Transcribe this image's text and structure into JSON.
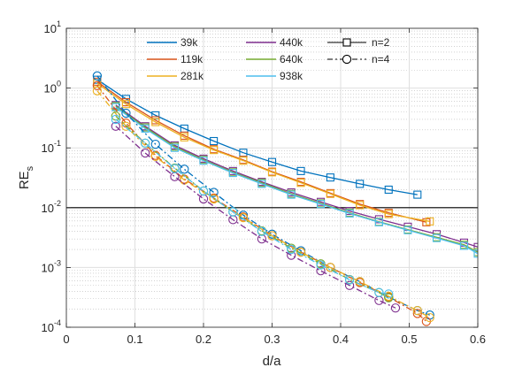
{
  "chart_data": {
    "type": "line",
    "xlabel": "d/a",
    "ylabel": "RE",
    "ylabel_sub": "s",
    "xlim": [
      0,
      0.6
    ],
    "ylim": [
      0.0001,
      10
    ],
    "yscale": "log",
    "grid": true,
    "minor_grid": true,
    "legend_placement": "top",
    "reference_line": {
      "y": 0.01,
      "color": "#000000"
    },
    "x_ticks": [
      "0",
      "0.1",
      "0.2",
      "0.3",
      "0.4",
      "0.5",
      "0.6"
    ],
    "y_ticks": [
      {
        "base": "10",
        "exp": "-4"
      },
      {
        "base": "10",
        "exp": "-3"
      },
      {
        "base": "10",
        "exp": "-2"
      },
      {
        "base": "10",
        "exp": "-1"
      },
      {
        "base": "10",
        "exp": "0"
      },
      {
        "base": "10",
        "exp": "1"
      }
    ],
    "series": [
      {
        "name": "39k",
        "color": "#0072BD",
        "marker": "square",
        "linestyle": "solid",
        "x": [
          0.045,
          0.087,
          0.13,
          0.172,
          0.215,
          0.258,
          0.3,
          0.342,
          0.385,
          0.428,
          0.47,
          0.512
        ],
        "y": [
          1.38,
          0.66,
          0.35,
          0.21,
          0.13,
          0.083,
          0.058,
          0.041,
          0.032,
          0.025,
          0.02,
          0.0165
        ]
      },
      {
        "name": "119k",
        "color": "#D95319",
        "marker": "square",
        "linestyle": "solid",
        "x": [
          0.045,
          0.087,
          0.13,
          0.172,
          0.215,
          0.258,
          0.3,
          0.342,
          0.385,
          0.428,
          0.47,
          0.525
        ],
        "y": [
          1.28,
          0.58,
          0.29,
          0.16,
          0.095,
          0.063,
          0.04,
          0.027,
          0.0175,
          0.0115,
          0.0082,
          0.0057
        ]
      },
      {
        "name": "281k",
        "color": "#EDB120",
        "marker": "square",
        "linestyle": "solid",
        "x": [
          0.045,
          0.087,
          0.13,
          0.172,
          0.215,
          0.258,
          0.3,
          0.342,
          0.385,
          0.428,
          0.47,
          0.53
        ],
        "y": [
          1.2,
          0.54,
          0.27,
          0.15,
          0.092,
          0.061,
          0.039,
          0.026,
          0.017,
          0.011,
          0.0078,
          0.0059
        ]
      },
      {
        "name": "440k",
        "color": "#7E2F8E",
        "marker": "square",
        "linestyle": "solid",
        "x": [
          0.072,
          0.115,
          0.158,
          0.2,
          0.243,
          0.285,
          0.328,
          0.371,
          0.413,
          0.456,
          0.498,
          0.54,
          0.58,
          0.6
        ],
        "y": [
          0.52,
          0.23,
          0.11,
          0.066,
          0.041,
          0.027,
          0.018,
          0.0125,
          0.0088,
          0.0064,
          0.0048,
          0.0036,
          0.0026,
          0.0022
        ]
      },
      {
        "name": "640k",
        "color": "#77AC30",
        "marker": "square",
        "linestyle": "solid",
        "x": [
          0.072,
          0.115,
          0.158,
          0.2,
          0.243,
          0.285,
          0.328,
          0.371,
          0.413,
          0.456,
          0.498,
          0.54,
          0.58,
          0.6
        ],
        "y": [
          0.5,
          0.22,
          0.105,
          0.063,
          0.039,
          0.026,
          0.017,
          0.0118,
          0.0082,
          0.0058,
          0.0043,
          0.0032,
          0.0024,
          0.0018
        ]
      },
      {
        "name": "938k",
        "color": "#4DBEEE",
        "marker": "square",
        "linestyle": "solid",
        "x": [
          0.072,
          0.115,
          0.158,
          0.2,
          0.243,
          0.285,
          0.328,
          0.371,
          0.413,
          0.456,
          0.498,
          0.54,
          0.58,
          0.6
        ],
        "y": [
          0.48,
          0.21,
          0.1,
          0.061,
          0.038,
          0.025,
          0.0165,
          0.0115,
          0.008,
          0.0057,
          0.0042,
          0.0031,
          0.0023,
          0.0017
        ]
      },
      {
        "name": "39k n=4",
        "color": "#0072BD",
        "marker": "circle",
        "linestyle": "dashdot",
        "x": [
          0.045,
          0.087,
          0.13,
          0.172,
          0.215,
          0.258,
          0.3,
          0.342,
          0.385,
          0.428,
          0.47,
          0.512,
          0.53
        ],
        "y": [
          1.6,
          0.38,
          0.115,
          0.044,
          0.018,
          0.0075,
          0.0036,
          0.0019,
          0.001,
          0.00058,
          0.00032,
          0.00019,
          0.00016
        ]
      },
      {
        "name": "119k n=4",
        "color": "#D95319",
        "marker": "circle",
        "linestyle": "dashdot",
        "x": [
          0.045,
          0.087,
          0.13,
          0.172,
          0.215,
          0.258,
          0.3,
          0.342,
          0.385,
          0.428,
          0.47,
          0.512,
          0.525
        ],
        "y": [
          1.1,
          0.26,
          0.075,
          0.03,
          0.0145,
          0.007,
          0.0034,
          0.0018,
          0.001,
          0.00056,
          0.00032,
          0.00017,
          0.000125
        ]
      },
      {
        "name": "281k n=4",
        "color": "#EDB120",
        "marker": "circle",
        "linestyle": "dashdot",
        "x": [
          0.045,
          0.087,
          0.13,
          0.172,
          0.215,
          0.258,
          0.3,
          0.342,
          0.385,
          0.428,
          0.47,
          0.512,
          0.53
        ],
        "y": [
          0.9,
          0.23,
          0.072,
          0.029,
          0.014,
          0.0068,
          0.0034,
          0.0018,
          0.001,
          0.00058,
          0.00033,
          0.00019,
          0.000145
        ]
      },
      {
        "name": "440k n=4",
        "color": "#7E2F8E",
        "marker": "circle",
        "linestyle": "dashdot",
        "x": [
          0.072,
          0.115,
          0.158,
          0.2,
          0.243,
          0.285,
          0.328,
          0.371,
          0.413,
          0.456,
          0.48
        ],
        "y": [
          0.23,
          0.082,
          0.033,
          0.014,
          0.0063,
          0.003,
          0.0016,
          0.00088,
          0.0005,
          0.00028,
          0.00021
        ]
      },
      {
        "name": "640k n=4",
        "color": "#77AC30",
        "marker": "circle",
        "linestyle": "dashdot",
        "x": [
          0.072,
          0.115,
          0.158,
          0.2,
          0.243,
          0.285,
          0.328,
          0.371,
          0.413,
          0.456,
          0.47
        ],
        "y": [
          0.34,
          0.12,
          0.046,
          0.019,
          0.0085,
          0.0041,
          0.0021,
          0.00115,
          0.00063,
          0.00038,
          0.00031
        ]
      },
      {
        "name": "938k n=4",
        "color": "#4DBEEE",
        "marker": "circle",
        "linestyle": "dashdot",
        "x": [
          0.072,
          0.115,
          0.158,
          0.2,
          0.243,
          0.285,
          0.328,
          0.371,
          0.413,
          0.456,
          0.47
        ],
        "y": [
          0.3,
          0.12,
          0.045,
          0.019,
          0.0085,
          0.004,
          0.002,
          0.0011,
          0.00062,
          0.00038,
          0.00036
        ]
      }
    ],
    "legend": [
      {
        "label": "39k",
        "color": "#0072BD",
        "kind": "line"
      },
      {
        "label": "119k",
        "color": "#D95319",
        "kind": "line"
      },
      {
        "label": "281k",
        "color": "#EDB120",
        "kind": "line"
      },
      {
        "label": "440k",
        "color": "#7E2F8E",
        "kind": "line"
      },
      {
        "label": "640k",
        "color": "#77AC30",
        "kind": "line"
      },
      {
        "label": "938k",
        "color": "#4DBEEE",
        "kind": "line"
      },
      {
        "label": "n=2",
        "color": "#000000",
        "kind": "square-solid"
      },
      {
        "label": "n=4",
        "color": "#000000",
        "kind": "circle-dashdot"
      }
    ]
  }
}
